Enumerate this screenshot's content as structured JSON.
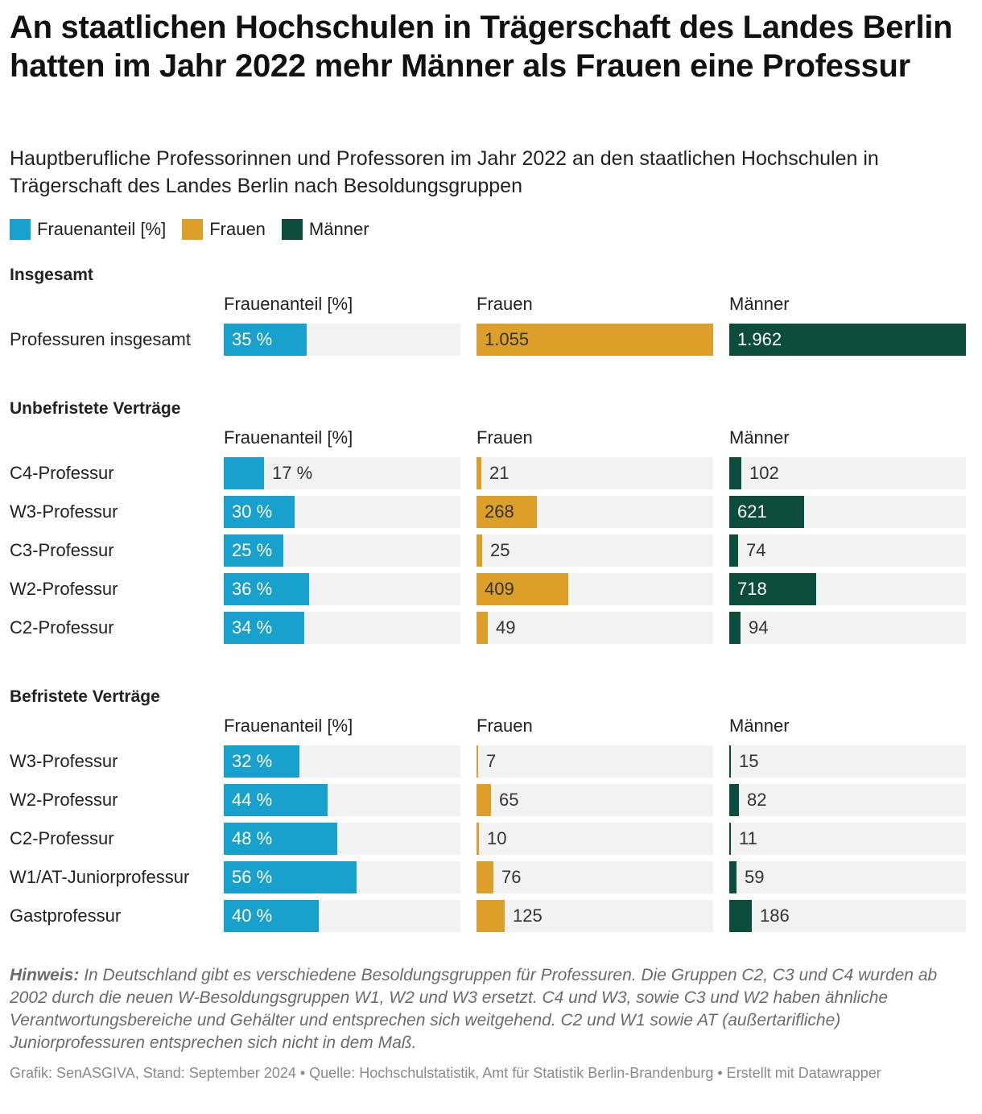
{
  "title": "An staatlichen Hochschulen in Trägerschaft des Landes Berlin hatten im Jahr 2022 mehr Männer als Frauen eine Professur",
  "subtitle": "Hauptberufliche Professorinnen und Professoren im Jahr 2022 an den staatlichen Hochschulen in Trägerschaft des Landes Berlin nach Besoldungsgruppen",
  "legend": [
    {
      "label": "Frauenanteil [%]",
      "color": "#18a1cd"
    },
    {
      "label": "Frauen",
      "color": "#dca02a"
    },
    {
      "label": "Männer",
      "color": "#0b4d3a"
    }
  ],
  "columns": {
    "share": "Frauenanteil [%]",
    "women": "Frauen",
    "men": "Männer"
  },
  "note": {
    "label": "Hinweis:",
    "text": " In Deutschland gibt es verschiedene Besoldungsgruppen für Professuren. Die Gruppen C2, C3 und C4 wurden ab 2002 durch die neuen W-Besoldungsgruppen W1, W2 und W3 ersetzt. C4 und W3, sowie C3 und W2 haben ähnliche Verantwortungsbereiche und Gehälter und entsprechen sich weitgehend. C2 und W1 sowie AT (außertarifliche) Juniorprofessuren entsprechen sich nicht in dem Maß."
  },
  "footer": "Grafik: SenASGIVA, Stand: September 2024 • Quelle: Hochschulstatistik, Amt für Statistik Berlin-Brandenburg • Erstellt mit Datawrapper",
  "chart_data": {
    "type": "bar",
    "orientation": "horizontal",
    "layout": "small-multiples",
    "scales": {
      "share": {
        "min": 0,
        "max": 100,
        "unit": "%"
      },
      "women": {
        "min": 0,
        "max": 1055
      },
      "men": {
        "min": 0,
        "max": 1962
      }
    },
    "sections": [
      {
        "title": "Insgesamt",
        "rows": [
          {
            "label": "Professuren insgesamt",
            "share": 35,
            "share_label": "35 %",
            "women": 1055,
            "women_label": "1.055",
            "men": 1962,
            "men_label": "1.962"
          }
        ]
      },
      {
        "title": "Unbefristete Verträge",
        "rows": [
          {
            "label": "C4-Professur",
            "share": 17,
            "share_label": "17 %",
            "women": 21,
            "women_label": "21",
            "men": 102,
            "men_label": "102"
          },
          {
            "label": "W3-Professur",
            "share": 30,
            "share_label": "30 %",
            "women": 268,
            "women_label": "268",
            "men": 621,
            "men_label": "621"
          },
          {
            "label": "C3-Professur",
            "share": 25,
            "share_label": "25 %",
            "women": 25,
            "women_label": "25",
            "men": 74,
            "men_label": "74"
          },
          {
            "label": "W2-Professur",
            "share": 36,
            "share_label": "36 %",
            "women": 409,
            "women_label": "409",
            "men": 718,
            "men_label": "718"
          },
          {
            "label": "C2-Professur",
            "share": 34,
            "share_label": "34 %",
            "women": 49,
            "women_label": "49",
            "men": 94,
            "men_label": "94"
          }
        ]
      },
      {
        "title": "Befristete Verträge",
        "rows": [
          {
            "label": "W3-Professur",
            "share": 32,
            "share_label": "32 %",
            "women": 7,
            "women_label": "7",
            "men": 15,
            "men_label": "15"
          },
          {
            "label": "W2-Professur",
            "share": 44,
            "share_label": "44 %",
            "women": 65,
            "women_label": "65",
            "men": 82,
            "men_label": "82"
          },
          {
            "label": "C2-Professur",
            "share": 48,
            "share_label": "48 %",
            "women": 10,
            "women_label": "10",
            "men": 11,
            "men_label": "11"
          },
          {
            "label": "W1/AT-Juniorprofessur",
            "share": 56,
            "share_label": "56 %",
            "women": 76,
            "women_label": "76",
            "men": 59,
            "men_label": "59"
          },
          {
            "label": "Gastprofessur",
            "share": 40,
            "share_label": "40 %",
            "women": 125,
            "women_label": "125",
            "men": 186,
            "men_label": "186"
          }
        ]
      }
    ]
  }
}
